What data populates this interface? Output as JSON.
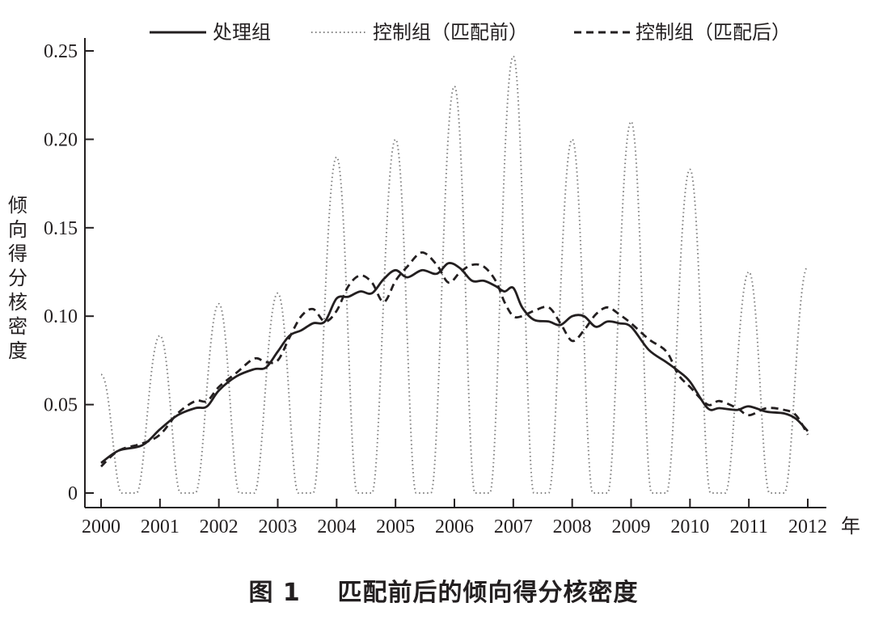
{
  "chart_data": {
    "type": "line",
    "ylabel": "倾向得分核密度",
    "x_unit": "年",
    "xlim": [
      2000,
      2012
    ],
    "ylim": [
      0,
      0.25
    ],
    "x_ticks": [
      2000,
      2001,
      2002,
      2003,
      2004,
      2005,
      2006,
      2007,
      2008,
      2009,
      2010,
      2011,
      2012
    ],
    "x_tick_labels": [
      "2000",
      "2001",
      "2002",
      "2003",
      "2004",
      "2005",
      "2006",
      "2007",
      "2008",
      "2009",
      "2010",
      "2011",
      "2012"
    ],
    "y_ticks": [
      0,
      0.05,
      0.1,
      0.15,
      0.2,
      0.25
    ],
    "y_tick_labels": [
      "0",
      "0.05",
      "0.10",
      "0.15",
      "0.20",
      "0.25"
    ],
    "legend_position": "top",
    "grid": false,
    "series": [
      {
        "name": "处理组",
        "style": "solid",
        "color": "#231f20",
        "points": [
          [
            2000,
            0.017
          ],
          [
            2000.3,
            0.024
          ],
          [
            2000.7,
            0.027
          ],
          [
            2001,
            0.036
          ],
          [
            2001.3,
            0.044
          ],
          [
            2001.6,
            0.048
          ],
          [
            2001.8,
            0.049
          ],
          [
            2002,
            0.058
          ],
          [
            2002.3,
            0.066
          ],
          [
            2002.6,
            0.07
          ],
          [
            2002.8,
            0.071
          ],
          [
            2003,
            0.08
          ],
          [
            2003.2,
            0.089
          ],
          [
            2003.4,
            0.092
          ],
          [
            2003.6,
            0.096
          ],
          [
            2003.8,
            0.097
          ],
          [
            2004,
            0.11
          ],
          [
            2004.2,
            0.111
          ],
          [
            2004.4,
            0.114
          ],
          [
            2004.6,
            0.113
          ],
          [
            2004.8,
            0.121
          ],
          [
            2005,
            0.126
          ],
          [
            2005.2,
            0.122
          ],
          [
            2005.45,
            0.126
          ],
          [
            2005.7,
            0.124
          ],
          [
            2005.9,
            0.13
          ],
          [
            2006.1,
            0.127
          ],
          [
            2006.3,
            0.12
          ],
          [
            2006.5,
            0.12
          ],
          [
            2006.7,
            0.117
          ],
          [
            2006.85,
            0.114
          ],
          [
            2007,
            0.116
          ],
          [
            2007.15,
            0.105
          ],
          [
            2007.35,
            0.098
          ],
          [
            2007.6,
            0.097
          ],
          [
            2007.8,
            0.095
          ],
          [
            2008,
            0.1
          ],
          [
            2008.2,
            0.1
          ],
          [
            2008.4,
            0.094
          ],
          [
            2008.6,
            0.097
          ],
          [
            2008.8,
            0.096
          ],
          [
            2009,
            0.094
          ],
          [
            2009.3,
            0.081
          ],
          [
            2009.6,
            0.074
          ],
          [
            2009.8,
            0.069
          ],
          [
            2010,
            0.063
          ],
          [
            2010.3,
            0.048
          ],
          [
            2010.5,
            0.048
          ],
          [
            2010.8,
            0.047
          ],
          [
            2011,
            0.049
          ],
          [
            2011.3,
            0.046
          ],
          [
            2011.6,
            0.045
          ],
          [
            2011.8,
            0.042
          ],
          [
            2012,
            0.035
          ]
        ]
      },
      {
        "name": "控制组（匹配前）",
        "style": "dotted",
        "color": "#7f7f7f",
        "peaks": [
          [
            2000,
            0.067
          ],
          [
            2001,
            0.089
          ],
          [
            2002,
            0.107
          ],
          [
            2003,
            0.113
          ],
          [
            2004,
            0.19
          ],
          [
            2005,
            0.2
          ],
          [
            2006,
            0.23
          ],
          [
            2007,
            0.247
          ],
          [
            2008,
            0.2
          ],
          [
            2009,
            0.21
          ],
          [
            2010,
            0.183
          ],
          [
            2011,
            0.125
          ],
          [
            2012,
            0.128
          ]
        ],
        "zero_intervals": [
          [
            2000.35,
            2000.6
          ],
          [
            2001.35,
            2001.6
          ],
          [
            2002.35,
            2002.6
          ],
          [
            2003.35,
            2003.6
          ],
          [
            2004.35,
            2004.6
          ],
          [
            2005.35,
            2005.6
          ],
          [
            2006.35,
            2006.6
          ],
          [
            2007.35,
            2007.6
          ],
          [
            2008.35,
            2008.6
          ],
          [
            2009.35,
            2009.6
          ],
          [
            2010.35,
            2010.6
          ],
          [
            2011.35,
            2011.6
          ]
        ]
      },
      {
        "name": "控制组（匹配后）",
        "style": "dashed",
        "color": "#231f20",
        "points": [
          [
            2000,
            0.015
          ],
          [
            2000.3,
            0.024
          ],
          [
            2000.7,
            0.028
          ],
          [
            2001,
            0.033
          ],
          [
            2001.3,
            0.045
          ],
          [
            2001.6,
            0.052
          ],
          [
            2001.8,
            0.052
          ],
          [
            2002,
            0.06
          ],
          [
            2002.3,
            0.068
          ],
          [
            2002.6,
            0.076
          ],
          [
            2002.8,
            0.074
          ],
          [
            2003,
            0.075
          ],
          [
            2003.2,
            0.088
          ],
          [
            2003.4,
            0.1
          ],
          [
            2003.6,
            0.104
          ],
          [
            2003.8,
            0.097
          ],
          [
            2004,
            0.103
          ],
          [
            2004.2,
            0.117
          ],
          [
            2004.4,
            0.123
          ],
          [
            2004.6,
            0.119
          ],
          [
            2004.8,
            0.108
          ],
          [
            2005,
            0.12
          ],
          [
            2005.2,
            0.128
          ],
          [
            2005.45,
            0.136
          ],
          [
            2005.7,
            0.129
          ],
          [
            2005.9,
            0.119
          ],
          [
            2006.1,
            0.125
          ],
          [
            2006.3,
            0.129
          ],
          [
            2006.5,
            0.128
          ],
          [
            2006.7,
            0.12
          ],
          [
            2006.85,
            0.108
          ],
          [
            2007,
            0.1
          ],
          [
            2007.15,
            0.1
          ],
          [
            2007.35,
            0.103
          ],
          [
            2007.6,
            0.105
          ],
          [
            2007.8,
            0.096
          ],
          [
            2008,
            0.086
          ],
          [
            2008.2,
            0.092
          ],
          [
            2008.4,
            0.101
          ],
          [
            2008.6,
            0.105
          ],
          [
            2008.8,
            0.101
          ],
          [
            2009,
            0.096
          ],
          [
            2009.3,
            0.087
          ],
          [
            2009.6,
            0.08
          ],
          [
            2009.8,
            0.067
          ],
          [
            2010,
            0.06
          ],
          [
            2010.3,
            0.05
          ],
          [
            2010.5,
            0.052
          ],
          [
            2010.8,
            0.048
          ],
          [
            2011,
            0.044
          ],
          [
            2011.3,
            0.048
          ],
          [
            2011.6,
            0.047
          ],
          [
            2011.8,
            0.044
          ],
          [
            2012,
            0.033
          ]
        ]
      }
    ]
  },
  "caption": {
    "label": "图 1",
    "text": "匹配前后的倾向得分核密度"
  }
}
